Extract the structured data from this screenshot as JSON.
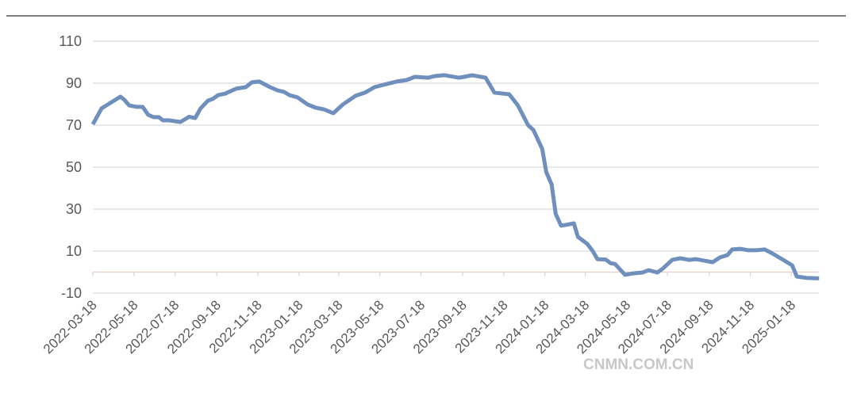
{
  "watermark": "CNMN.COM.CN",
  "chart_data": {
    "type": "line",
    "title": "",
    "xlabel": "",
    "ylabel": "",
    "ylim": [
      -10,
      110
    ],
    "yticks": [
      "-10",
      "10",
      "30",
      "50",
      "70",
      "90",
      "110"
    ],
    "xtick_labels": [
      "2022-03-18",
      "2022-05-18",
      "2022-07-18",
      "2022-09-18",
      "2022-11-18",
      "2023-01-18",
      "2023-03-18",
      "2023-05-18",
      "2023-07-18",
      "2023-09-18",
      "2023-11-18",
      "2024-01-18",
      "2024-03-18",
      "2024-05-18",
      "2024-07-18",
      "2024-09-18",
      "2024-11-18",
      "2025-01-18"
    ],
    "grid": true,
    "legend": "none",
    "line_color": "#6f8fbd",
    "series": [
      {
        "x": [
          "2022-03-18",
          "2022-03-31",
          "2022-04-28",
          "2022-05-04",
          "2022-05-11",
          "2022-05-22",
          "2022-05-31",
          "2022-06-08",
          "2022-06-16",
          "2022-06-24",
          "2022-06-30",
          "2022-07-09",
          "2022-07-26",
          "2022-08-08",
          "2022-08-17",
          "2022-08-25",
          "2022-09-05",
          "2022-09-12",
          "2022-09-20",
          "2022-09-30",
          "2022-10-17",
          "2022-10-31",
          "2022-11-09",
          "2022-11-20",
          "2022-12-06",
          "2022-12-17",
          "2022-12-27",
          "2023-01-04",
          "2023-01-16",
          "2023-01-31",
          "2023-02-12",
          "2023-02-24",
          "2023-03-10",
          "2023-03-24",
          "2023-04-12",
          "2023-04-26",
          "2023-05-10",
          "2023-05-28",
          "2023-06-12",
          "2023-06-27",
          "2023-07-09",
          "2023-07-29",
          "2023-08-08",
          "2023-08-22",
          "2023-09-12",
          "2023-09-20",
          "2023-10-02",
          "2023-10-22",
          "2023-11-04",
          "2023-11-26",
          "2023-12-09",
          "2023-12-24",
          "2024-01-01",
          "2024-01-14",
          "2024-01-20",
          "2024-01-28",
          "2024-02-03",
          "2024-02-11",
          "2024-03-01",
          "2024-03-07",
          "2024-03-21",
          "2024-03-29",
          "2024-04-05",
          "2024-04-17",
          "2024-04-25",
          "2024-05-01",
          "2024-05-16",
          "2024-05-28",
          "2024-06-11",
          "2024-06-20",
          "2024-07-03",
          "2024-07-11",
          "2024-07-25",
          "2024-08-06",
          "2024-08-19",
          "2024-08-29",
          "2024-09-10",
          "2024-09-23",
          "2024-10-04",
          "2024-10-15",
          "2024-10-22",
          "2024-11-03",
          "2024-11-15",
          "2024-11-27",
          "2024-12-09",
          "2024-12-20",
          "2025-01-04",
          "2025-01-19",
          "2025-01-26",
          "2025-02-10",
          "2025-02-28"
        ],
        "values": [
          70.4,
          78,
          83.6,
          82,
          79.4,
          78.7,
          78.7,
          75,
          73.8,
          73.8,
          72.3,
          72.3,
          71.5,
          74,
          73.4,
          78,
          81.7,
          82.5,
          84.3,
          85,
          87.4,
          88.1,
          90.4,
          90.8,
          88.1,
          86.6,
          85.8,
          84.3,
          83.2,
          79.8,
          78.3,
          77.5,
          75.7,
          79.8,
          84,
          85.5,
          88.1,
          89.6,
          90.8,
          91.5,
          93,
          92.6,
          93.4,
          93.8,
          92.6,
          93,
          93.8,
          92.6,
          85.5,
          84.7,
          79.4,
          70,
          67.7,
          58.7,
          47.7,
          41.7,
          27.7,
          22.1,
          23.2,
          16.8,
          13.4,
          10,
          6.2,
          6,
          4.2,
          3.9,
          -1.3,
          -0.6,
          -0.2,
          0.9,
          -0.2,
          1.7,
          5.8,
          6.6,
          5.8,
          6.2,
          5.5,
          4.7,
          7,
          8.1,
          10.8,
          11.1,
          10.4,
          10.4,
          10.8,
          9,
          6.2,
          3.2,
          -2.1,
          -2.8,
          -3
        ]
      }
    ]
  }
}
